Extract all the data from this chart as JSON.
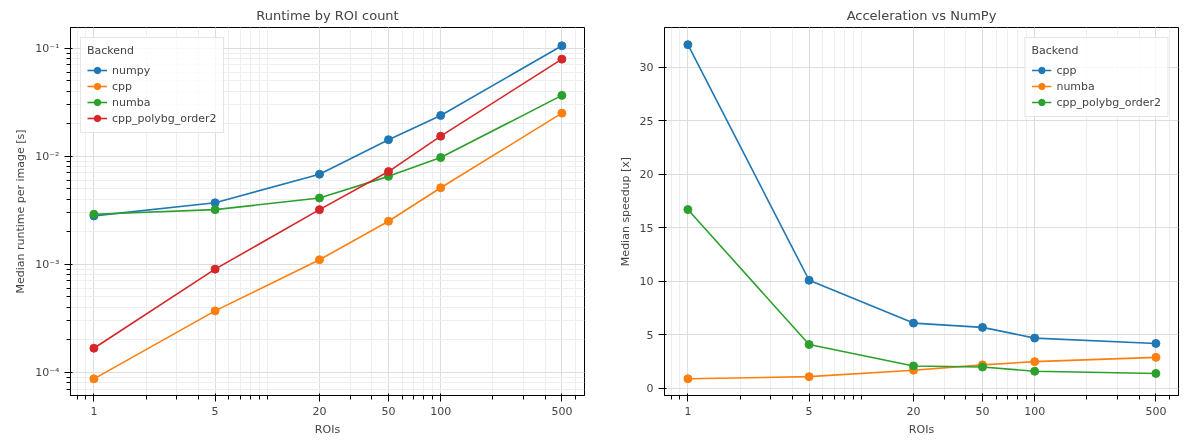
{
  "chart_data": [
    {
      "type": "line",
      "title": "Runtime by ROI count",
      "xlabel": "ROIs",
      "ylabel": "Median runtime per image [s]",
      "legend_title": "Backend",
      "log": "xy",
      "grid": true,
      "legend": "top left",
      "marker": "circle",
      "line_style": "solid",
      "x": [
        1,
        5,
        20,
        50,
        100,
        500
      ],
      "xlim": [
        0.733,
        675
      ],
      "xticks": [
        1,
        5,
        20,
        50,
        100,
        500
      ],
      "ylim": [
        6.1e-05,
        0.155
      ],
      "yticks": [
        {
          "value": 0.0001,
          "label": "10⁻⁴"
        },
        {
          "value": 0.001,
          "label": "10⁻³"
        },
        {
          "value": 0.01,
          "label": "10⁻²"
        },
        {
          "value": 0.1,
          "label": "10⁻¹"
        }
      ],
      "series": [
        {
          "name": "numpy",
          "color": "#1f77b4",
          "values": [
            0.0028,
            0.0037,
            0.0068,
            0.0142,
            0.0238,
            0.105
          ]
        },
        {
          "name": "cpp",
          "color": "#ff7f0e",
          "values": [
            8.7e-05,
            0.00037,
            0.0011,
            0.0025,
            0.0051,
            0.025
          ]
        },
        {
          "name": "numba",
          "color": "#2ca02c",
          "values": [
            0.0029,
            0.0032,
            0.0041,
            0.0065,
            0.0097,
            0.0365
          ]
        },
        {
          "name": "cpp_polybg_order2",
          "color": "#d62728",
          "values": [
            0.000167,
            0.0009,
            0.0032,
            0.0072,
            0.0153,
            0.079
          ]
        }
      ]
    },
    {
      "type": "line",
      "title": "Acceleration vs NumPy",
      "xlabel": "ROIs",
      "ylabel": "Median speedup [x]",
      "legend_title": "Backend",
      "log": "x",
      "grid": true,
      "legend": "top right",
      "marker": "circle",
      "line_style": "solid",
      "x": [
        1,
        5,
        20,
        50,
        100,
        500
      ],
      "xlim": [
        0.733,
        675
      ],
      "xticks": [
        1,
        5,
        20,
        50,
        100,
        500
      ],
      "ylim": [
        -0.66,
        33.7
      ],
      "yticks": [
        0,
        5,
        10,
        15,
        20,
        25,
        30
      ],
      "series": [
        {
          "name": "cpp",
          "color": "#1f77b4",
          "values": [
            32.1,
            10.1,
            6.1,
            5.7,
            4.7,
            4.2
          ]
        },
        {
          "name": "numba",
          "color": "#ff7f0e",
          "values": [
            0.9,
            1.1,
            1.7,
            2.2,
            2.5,
            2.9
          ]
        },
        {
          "name": "cpp_polybg_order2",
          "color": "#2ca02c",
          "values": [
            16.7,
            4.1,
            2.1,
            2.0,
            1.6,
            1.4
          ]
        }
      ]
    }
  ]
}
